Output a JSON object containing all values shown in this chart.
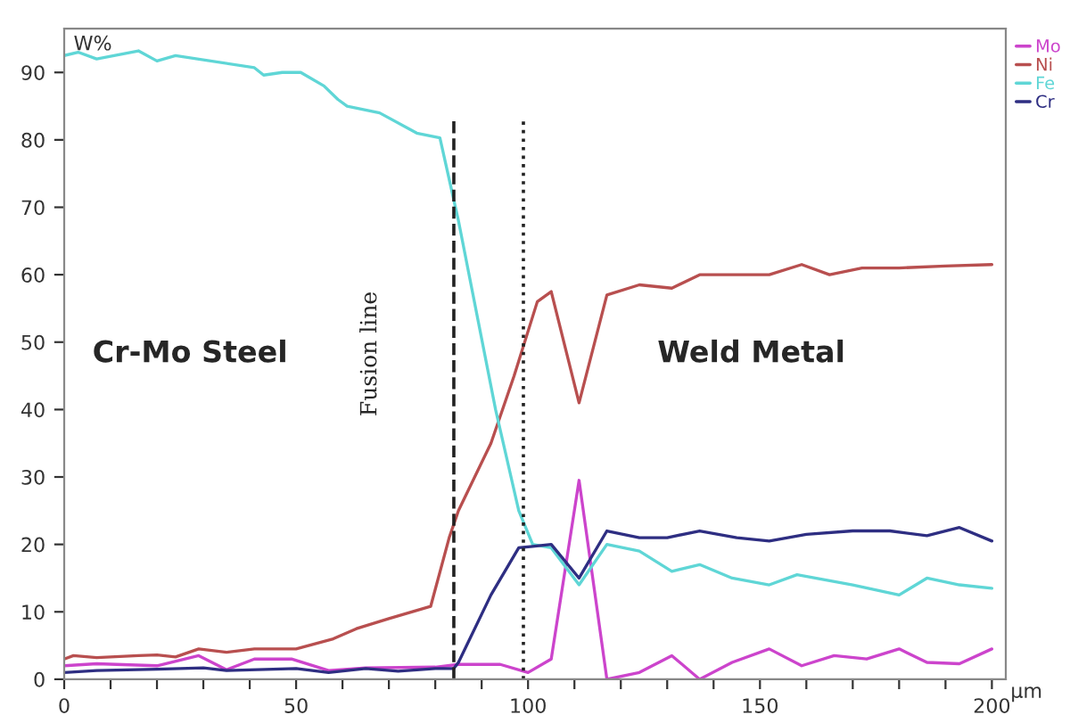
{
  "chart_data": {
    "type": "line",
    "ylabel": "W%",
    "xlabel": "µm",
    "xlim": [
      0,
      203
    ],
    "ylim": [
      0,
      96.5
    ],
    "xticks": [
      0,
      {
        "value": 10,
        "label": null
      },
      {
        "value": 20,
        "label": null
      },
      {
        "value": 30,
        "label": null
      },
      {
        "value": 40,
        "label": null
      },
      50,
      {
        "value": 60,
        "label": null
      },
      {
        "value": 70,
        "label": null
      },
      {
        "value": 80,
        "label": null
      },
      {
        "value": 90,
        "label": null
      },
      100,
      {
        "value": 110,
        "label": null
      },
      {
        "value": 120,
        "label": null
      },
      {
        "value": 130,
        "label": null
      },
      {
        "value": 140,
        "label": null
      },
      150,
      {
        "value": 160,
        "label": null
      },
      {
        "value": 170,
        "label": null
      },
      {
        "value": 180,
        "label": null
      },
      {
        "value": 190,
        "label": null
      },
      200
    ],
    "yticks": [
      0,
      10,
      20,
      30,
      40,
      50,
      60,
      70,
      80,
      90
    ],
    "grid": false,
    "legend": "top right",
    "marker": "none",
    "line_style": "solid",
    "series": [
      {
        "name": "Mo",
        "color": "#cc44cc",
        "x": [
          0,
          7,
          20,
          29,
          35,
          41,
          49,
          57,
          65,
          80,
          85,
          94,
          100,
          105,
          111,
          117,
          124,
          131,
          137,
          144,
          152,
          159,
          166,
          173,
          180,
          186,
          193,
          200
        ],
        "values": [
          2,
          2.3,
          2,
          3.5,
          1.4,
          3,
          3,
          1.3,
          1.7,
          1.8,
          2.2,
          2.2,
          1,
          3,
          29.5,
          0,
          1,
          3.5,
          0,
          2.5,
          4.5,
          2,
          3.5,
          3,
          4.5,
          2.5,
          2.3,
          4.5
        ]
      },
      {
        "name": "Ni",
        "color": "#b84f4f",
        "x": [
          0,
          2,
          7,
          16,
          20,
          24,
          29,
          35,
          41,
          50,
          58,
          63,
          70,
          79,
          83,
          85,
          92,
          97,
          102,
          105,
          111,
          117,
          124,
          131,
          137,
          144,
          152,
          159,
          165,
          172,
          180,
          190,
          200
        ],
        "values": [
          3,
          3.5,
          3.2,
          3.5,
          3.6,
          3.3,
          4.5,
          4,
          4.5,
          4.5,
          6,
          7.5,
          9,
          10.8,
          21,
          25,
          35,
          45,
          56,
          57.5,
          41,
          57,
          58.5,
          58,
          60,
          60,
          60,
          61.5,
          60,
          61,
          61,
          61.3,
          61.5
        ]
      },
      {
        "name": "Fe",
        "color": "#5fd6d6",
        "x": [
          0,
          3,
          7,
          16,
          20,
          24,
          41,
          43,
          47,
          51,
          56,
          59,
          61,
          68,
          76,
          81,
          85,
          93,
          98,
          101,
          105,
          111,
          117,
          124,
          131,
          137,
          144,
          152,
          158,
          170,
          180,
          186,
          193,
          200
        ],
        "values": [
          92.5,
          93,
          92,
          93.2,
          91.7,
          92.5,
          90.7,
          89.6,
          90,
          90,
          88,
          86,
          85,
          84,
          81,
          80.3,
          68,
          40,
          25,
          20,
          19.5,
          14,
          20,
          19,
          16,
          17,
          15,
          14,
          15.5,
          14,
          12.5,
          15,
          14,
          13.5
        ]
      },
      {
        "name": "Cr",
        "color": "#2e2e82",
        "x": [
          0,
          7,
          20,
          30,
          35,
          50,
          57,
          65,
          72,
          80,
          84,
          85,
          92,
          98,
          101,
          105,
          111,
          117,
          124,
          130,
          137,
          145,
          152,
          160,
          170,
          178,
          186,
          193,
          200
        ],
        "values": [
          1,
          1.3,
          1.5,
          1.7,
          1.3,
          1.6,
          1,
          1.6,
          1.2,
          1.6,
          1.6,
          2.5,
          12.5,
          19.5,
          19.7,
          20,
          15,
          22,
          21,
          21,
          22,
          21,
          20.5,
          21.5,
          22,
          22,
          21.3,
          22.5,
          20.5
        ]
      }
    ],
    "ref_lines": [
      {
        "axis": "x",
        "value": 84,
        "color": "#222222",
        "line_style": "dashed"
      },
      {
        "axis": "x",
        "value": 99,
        "color": "#222222",
        "line_style": "dotted"
      }
    ],
    "annotations": [
      "Cr-Mo Steel",
      "Fusion line",
      "Weld Metal"
    ]
  }
}
